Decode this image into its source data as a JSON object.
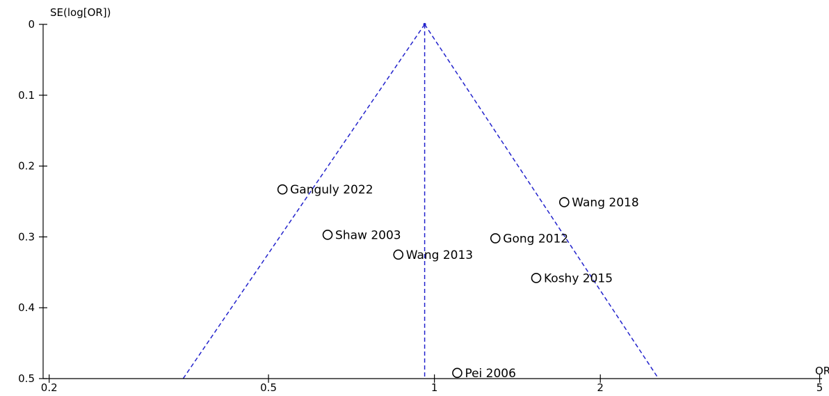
{
  "chart_data": {
    "type": "scatter",
    "ylabel": "SE(log[OR])",
    "xlabel": "OR",
    "x_scale": "log",
    "y_reversed": true,
    "xlim": [
      0.195,
      5.05
    ],
    "ylim": [
      0,
      0.5
    ],
    "x_ticks": [
      {
        "value": 0.2,
        "label": "0.2"
      },
      {
        "value": 0.5,
        "label": "0.5"
      },
      {
        "value": 1,
        "label": "1"
      },
      {
        "value": 2,
        "label": "2"
      },
      {
        "value": 5,
        "label": "5"
      }
    ],
    "y_ticks": [
      {
        "value": 0,
        "label": "0"
      },
      {
        "value": 0.1,
        "label": "0.1"
      },
      {
        "value": 0.2,
        "label": "0.2"
      },
      {
        "value": 0.3,
        "label": "0.3"
      },
      {
        "value": 0.4,
        "label": "0.4"
      },
      {
        "value": 0.5,
        "label": "0.5"
      }
    ],
    "pooled_or": 0.96,
    "funnel": {
      "apex": [
        0.96,
        0
      ],
      "left_base": [
        0.35,
        0.5
      ],
      "right_base": [
        2.55,
        0.5
      ]
    },
    "points": [
      {
        "label": "Ganguly 2022",
        "x": 0.53,
        "y": 0.233
      },
      {
        "label": "Wang 2018",
        "x": 1.72,
        "y": 0.251
      },
      {
        "label": "Shaw 2003",
        "x": 0.64,
        "y": 0.297
      },
      {
        "label": "Gong 2012",
        "x": 1.29,
        "y": 0.302
      },
      {
        "label": "Wang 2013",
        "x": 0.86,
        "y": 0.325
      },
      {
        "label": "Koshy 2015",
        "x": 1.53,
        "y": 0.358
      },
      {
        "label": "Pei 2006",
        "x": 1.1,
        "y": 0.492
      }
    ],
    "colors": {
      "funnel": "#2222cc",
      "points": "#000000",
      "axes": "#000000"
    },
    "grid": false,
    "legend": "none"
  }
}
